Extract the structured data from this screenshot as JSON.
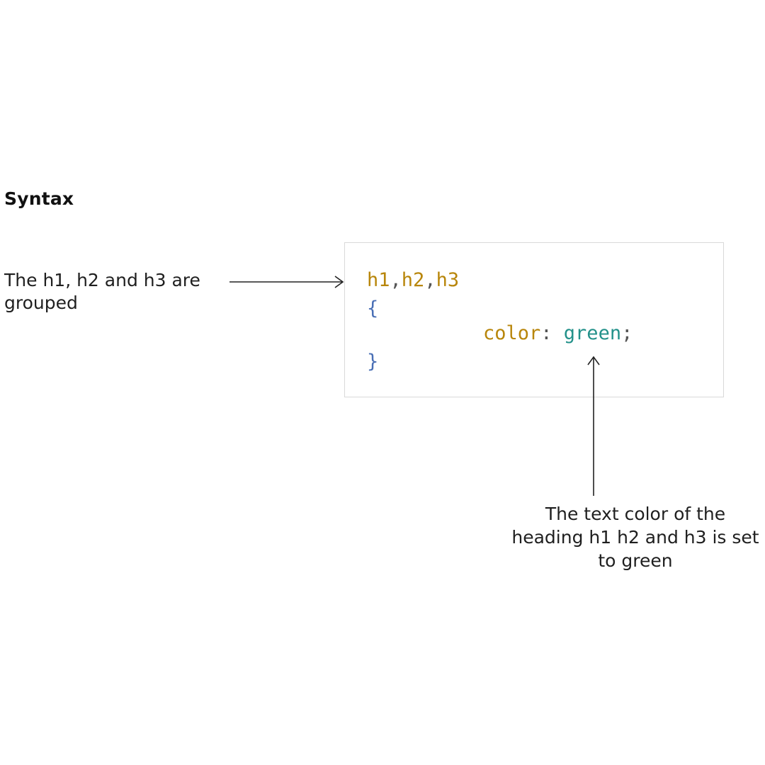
{
  "heading": "Syntax",
  "left_annotation": "The h1, h2 and h3 are grouped",
  "bottom_annotation": "The text color of the heading h1 h2 and h3 is set to green",
  "code": {
    "selector_1": "h1",
    "selector_2": "h2",
    "selector_3": "h3",
    "comma": ",",
    "open_brace": "{",
    "property": "color",
    "colon": ": ",
    "value": "green",
    "semicolon": ";",
    "close_brace": "}"
  },
  "colors": {
    "selector": "#b8860b",
    "brace": "#4a6fb5",
    "value": "#23918a",
    "box_border": "#d9d9d9"
  }
}
